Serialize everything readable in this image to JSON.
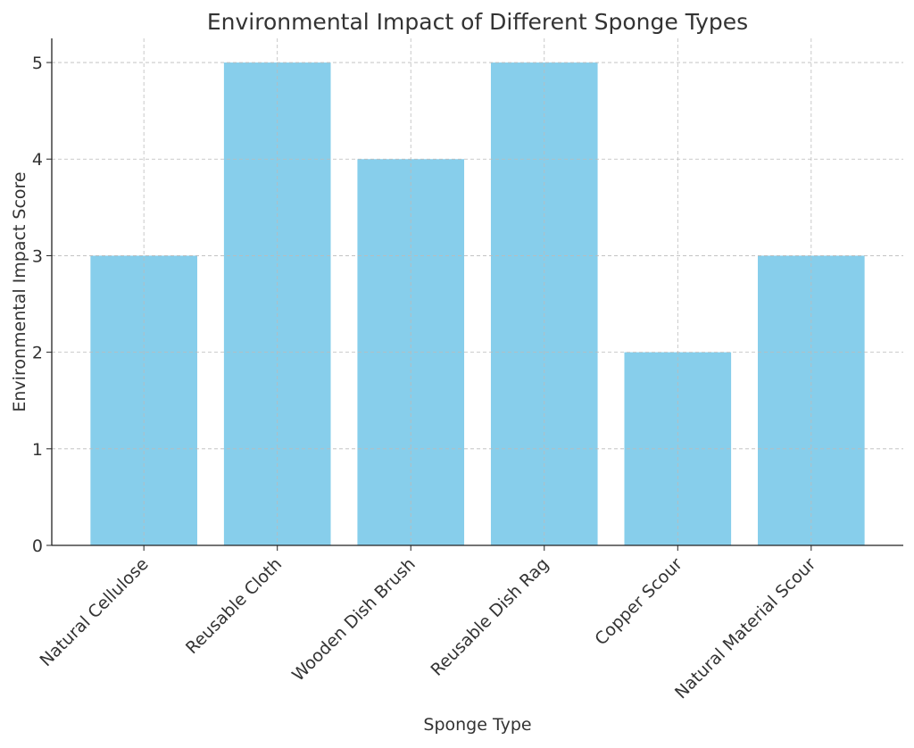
{
  "chart_data": {
    "type": "bar",
    "title": "Environmental Impact of Different Sponge Types",
    "xlabel": "Sponge Type",
    "ylabel": "Environmental Impact Score",
    "categories": [
      "Natural Cellulose",
      "Reusable Cloth",
      "Wooden Dish Brush",
      "Reusable Dish Rag",
      "Copper Scour",
      "Natural Material Scour"
    ],
    "values": [
      3,
      5,
      4,
      5,
      2,
      3
    ],
    "ylim": [
      0,
      5.25
    ],
    "yticks": [
      "0",
      "1",
      "2",
      "3",
      "4",
      "5"
    ],
    "grid": true,
    "bar_color": "#87CEEB"
  }
}
